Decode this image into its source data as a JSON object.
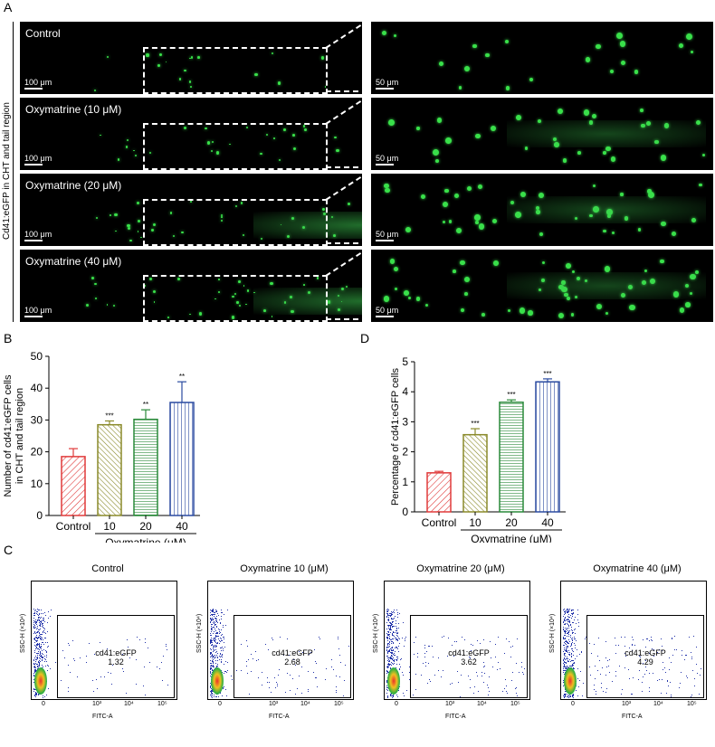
{
  "panels": {
    "A": "A",
    "B": "B",
    "C": "C",
    "D": "D"
  },
  "panel_a": {
    "ylabel": "Cd41:eGFP in CHT and tail region",
    "rows": [
      {
        "label": "Control",
        "scale_left": "100 μm",
        "scale_right": "50 μm"
      },
      {
        "label": "Oxymatrine (10 μM)",
        "scale_left": "100 μm",
        "scale_right": "50 μm"
      },
      {
        "label": "Oxymatrine (20 μM)",
        "scale_left": "100 μm",
        "scale_right": "50 μm"
      },
      {
        "label": "Oxymatrine (40 μM)",
        "scale_left": "100 μm",
        "scale_right": "50 μm"
      }
    ]
  },
  "chart_data": [
    {
      "type": "bar",
      "panel": "B",
      "ylabel": "Number of cd41:eGFP cells in CHT and tail region",
      "ylabel_lines": [
        "Number of cd41:eGFP cells",
        "in CHT and tail region"
      ],
      "categories": [
        "Control",
        "10",
        "20",
        "40"
      ],
      "group_label": "Oxymatrine (μM)",
      "values": [
        18.5,
        28.5,
        30.2,
        35.5
      ],
      "errors": [
        2.5,
        1.2,
        3.0,
        6.5
      ],
      "significance": [
        "",
        "***",
        "**",
        "**"
      ],
      "colors": [
        "#e03a3a",
        "#8a8a2a",
        "#2a8a3a",
        "#2a4aa0"
      ],
      "ylim": [
        0,
        50
      ],
      "yticks": [
        0,
        10,
        20,
        30,
        40,
        50
      ]
    },
    {
      "type": "bar",
      "panel": "D",
      "ylabel": "Percentage of cd41:eGFP cells",
      "categories": [
        "Control",
        "10",
        "20",
        "40"
      ],
      "group_label": "Oxymatrine (μM)",
      "values": [
        1.3,
        2.57,
        3.65,
        4.33
      ],
      "errors": [
        0.05,
        0.2,
        0.08,
        0.1
      ],
      "significance": [
        "",
        "***",
        "***",
        "***"
      ],
      "colors": [
        "#e03a3a",
        "#8a8a2a",
        "#2a8a3a",
        "#2a4aa0"
      ],
      "ylim": [
        0,
        5
      ],
      "yticks": [
        0,
        1,
        2,
        3,
        4,
        5
      ]
    }
  ],
  "panel_c": {
    "yaxis": "SSC-H (×10⁴)",
    "xaxis": "FITC-A",
    "xticks": [
      "0",
      "10³",
      "10⁴",
      "10⁵"
    ],
    "gate_name": "cd41:eGFP",
    "plots": [
      {
        "title": "Control",
        "value": "1.32"
      },
      {
        "title": "Oxymatrine 10 (μM)",
        "value": "2.68"
      },
      {
        "title": "Oxymatrine 20 (μM)",
        "value": "3.62"
      },
      {
        "title": "Oxymatrine 40 (μM)",
        "value": "4.29"
      }
    ]
  }
}
